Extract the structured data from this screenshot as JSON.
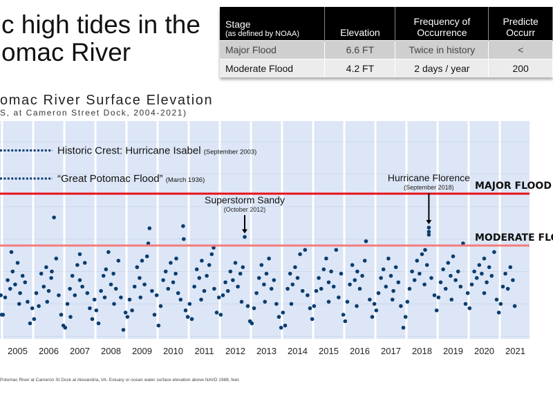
{
  "slide": {
    "title_line1": "c high tides in the",
    "title_line2": "omac River"
  },
  "table": {
    "headers": [
      {
        "main": "Stage",
        "sub": "(as defined by NOAA)"
      },
      {
        "main": "Elevation"
      },
      {
        "main": "Frequency of Occurrence"
      },
      {
        "main": "Predicte Occurr"
      }
    ],
    "rows": [
      [
        "Major Flood",
        "6.6 FT",
        "Twice in history",
        "<"
      ],
      [
        "Moderate Flood",
        "4.2 FT",
        "2 days / year",
        "200"
      ]
    ]
  },
  "footnote": "Potomac River at Cameron St Dock at Alexandria, VA. Estuary or ocean water surface elevation above NAVD 1988, feet.",
  "chart_data": {
    "type": "scatter",
    "title": "omac River Surface Elevation",
    "subtitle": "S, at Cameron Street Dock, 2004-2021)",
    "xlim": [
      2004.93,
      2021.7
    ],
    "ylim": [
      -0.12,
      9.96
    ],
    "x_ticks": [
      "2005",
      "2006",
      "2007",
      "2008",
      "2009",
      "2010",
      "2011",
      "2012",
      "2013",
      "2014",
      "2015",
      "2016",
      "2017",
      "2018",
      "2019",
      "2020",
      "2021"
    ],
    "grid": "vertical year bands",
    "colors": {
      "points": "#0b3d6e",
      "major": "#e8101a",
      "moderate": "#f47c7c",
      "background": "#dce6f6",
      "legend_lines": "#0b3d6e"
    },
    "thresholds": [
      {
        "label": "MAJOR FLOOD",
        "value": 6.6
      },
      {
        "label": "MODERATE FLOOD",
        "value": 4.2
      }
    ],
    "reference_lines": [
      {
        "label": "Historic Crest: Hurricane Isabel",
        "note": "(September 2003)",
        "value": 8.6
      },
      {
        "label": "“Great Potomac Flood”",
        "note": "(March 1936)",
        "value": 7.3
      }
    ],
    "annotations": [
      {
        "label": "Superstorm Sandy",
        "note": "(October 2012)",
        "x": 2012.8,
        "y": 4.6
      },
      {
        "label": "Hurricane Florence",
        "note": "(September 2018)",
        "x": 2018.72,
        "y": 5.03
      }
    ],
    "points": [
      [
        2004.96,
        1.9
      ],
      [
        2004.99,
        1.0
      ],
      [
        2005.03,
        1.0
      ],
      [
        2005.1,
        1.8
      ],
      [
        2005.18,
        2.6
      ],
      [
        2005.26,
        2.2
      ],
      [
        2005.34,
        3.0
      ],
      [
        2005.42,
        2.4
      ],
      [
        2005.5,
        3.4
      ],
      [
        2005.58,
        2.0
      ],
      [
        2005.66,
        2.8
      ],
      [
        2005.74,
        2.5
      ],
      [
        2005.82,
        1.6
      ],
      [
        2005.9,
        0.6
      ],
      [
        2005.97,
        1.3
      ],
      [
        2005.3,
        3.9
      ],
      [
        2005.55,
        1.5
      ],
      [
        2006.03,
        0.8
      ],
      [
        2006.1,
        2.0
      ],
      [
        2006.18,
        1.4
      ],
      [
        2006.26,
        2.9
      ],
      [
        2006.34,
        2.3
      ],
      [
        2006.42,
        3.2
      ],
      [
        2006.5,
        2.1
      ],
      [
        2006.58,
        2.7
      ],
      [
        2006.67,
        5.5
      ],
      [
        2006.74,
        3.6
      ],
      [
        2006.82,
        1.9
      ],
      [
        2006.9,
        1.0
      ],
      [
        2006.97,
        0.5
      ],
      [
        2006.6,
        3.0
      ],
      [
        2006.45,
        1.6
      ],
      [
        2007.03,
        0.4
      ],
      [
        2007.1,
        1.5
      ],
      [
        2007.18,
        2.2
      ],
      [
        2007.26,
        2.8
      ],
      [
        2007.34,
        1.9
      ],
      [
        2007.42,
        3.3
      ],
      [
        2007.5,
        2.6
      ],
      [
        2007.58,
        2.3
      ],
      [
        2007.66,
        3.4
      ],
      [
        2007.74,
        2.0
      ],
      [
        2007.82,
        1.3
      ],
      [
        2007.9,
        0.8
      ],
      [
        2007.97,
        1.7
      ],
      [
        2007.5,
        3.8
      ],
      [
        2007.2,
        0.9
      ],
      [
        2008.03,
        1.2
      ],
      [
        2008.1,
        0.6
      ],
      [
        2008.18,
        2.1
      ],
      [
        2008.26,
        2.8
      ],
      [
        2008.34,
        3.1
      ],
      [
        2008.42,
        3.9
      ],
      [
        2008.5,
        2.4
      ],
      [
        2008.58,
        2.9
      ],
      [
        2008.66,
        2.2
      ],
      [
        2008.74,
        3.5
      ],
      [
        2008.82,
        1.8
      ],
      [
        2008.9,
        0.3
      ],
      [
        2008.97,
        1.1
      ],
      [
        2008.6,
        1.5
      ],
      [
        2008.3,
        1.8
      ],
      [
        2009.03,
        0.9
      ],
      [
        2009.1,
        1.7
      ],
      [
        2009.18,
        1.2
      ],
      [
        2009.26,
        2.3
      ],
      [
        2009.34,
        3.2
      ],
      [
        2009.42,
        2.7
      ],
      [
        2009.5,
        3.5
      ],
      [
        2009.58,
        2.4
      ],
      [
        2009.66,
        3.7
      ],
      [
        2009.74,
        5.0
      ],
      [
        2009.82,
        2.1
      ],
      [
        2009.9,
        1.0
      ],
      [
        2009.97,
        1.9
      ],
      [
        2009.7,
        4.3
      ],
      [
        2009.45,
        1.8
      ],
      [
        2010.03,
        0.5
      ],
      [
        2010.1,
        1.4
      ],
      [
        2010.18,
        2.6
      ],
      [
        2010.26,
        3.0
      ],
      [
        2010.34,
        2.2
      ],
      [
        2010.42,
        3.4
      ],
      [
        2010.5,
        2.5
      ],
      [
        2010.58,
        2.9
      ],
      [
        2010.66,
        2.0
      ],
      [
        2010.74,
        1.7
      ],
      [
        2010.82,
        5.1
      ],
      [
        2010.9,
        1.2
      ],
      [
        2010.97,
        0.9
      ],
      [
        2010.84,
        4.5
      ],
      [
        2010.6,
        3.6
      ],
      [
        2011.03,
        1.5
      ],
      [
        2011.1,
        0.8
      ],
      [
        2011.18,
        2.3
      ],
      [
        2011.26,
        3.1
      ],
      [
        2011.34,
        2.7
      ],
      [
        2011.42,
        3.5
      ],
      [
        2011.5,
        2.1
      ],
      [
        2011.58,
        2.8
      ],
      [
        2011.66,
        3.3
      ],
      [
        2011.74,
        3.8
      ],
      [
        2011.82,
        2.2
      ],
      [
        2011.9,
        1.1
      ],
      [
        2011.97,
        1.8
      ],
      [
        2011.8,
        4.1
      ],
      [
        2011.4,
        1.7
      ],
      [
        2012.03,
        1.0
      ],
      [
        2012.1,
        1.9
      ],
      [
        2012.18,
        2.5
      ],
      [
        2012.26,
        2.1
      ],
      [
        2012.34,
        3.0
      ],
      [
        2012.42,
        2.6
      ],
      [
        2012.5,
        3.4
      ],
      [
        2012.58,
        2.3
      ],
      [
        2012.66,
        2.9
      ],
      [
        2012.74,
        3.2
      ],
      [
        2012.8,
        4.6
      ],
      [
        2012.9,
        1.4
      ],
      [
        2012.97,
        0.7
      ],
      [
        2012.7,
        1.6
      ],
      [
        2013.03,
        0.6
      ],
      [
        2013.1,
        1.3
      ],
      [
        2013.18,
        2.0
      ],
      [
        2013.26,
        2.7
      ],
      [
        2013.34,
        3.3
      ],
      [
        2013.42,
        2.4
      ],
      [
        2013.5,
        2.9
      ],
      [
        2013.58,
        3.6
      ],
      [
        2013.66,
        2.2
      ],
      [
        2013.74,
        2.6
      ],
      [
        2013.82,
        1.5
      ],
      [
        2013.9,
        0.9
      ],
      [
        2013.97,
        0.4
      ],
      [
        2013.45,
        1.6
      ],
      [
        2014.03,
        1.1
      ],
      [
        2014.1,
        0.5
      ],
      [
        2014.18,
        2.2
      ],
      [
        2014.26,
        2.9
      ],
      [
        2014.34,
        2.4
      ],
      [
        2014.42,
        3.2
      ],
      [
        2014.5,
        2.7
      ],
      [
        2014.58,
        3.8
      ],
      [
        2014.66,
        2.1
      ],
      [
        2014.74,
        4.0
      ],
      [
        2014.82,
        1.9
      ],
      [
        2014.9,
        1.3
      ],
      [
        2014.97,
        0.8
      ],
      [
        2014.3,
        1.5
      ],
      [
        2015.03,
        1.4
      ],
      [
        2015.1,
        2.1
      ],
      [
        2015.18,
        2.7
      ],
      [
        2015.26,
        2.2
      ],
      [
        2015.34,
        3.1
      ],
      [
        2015.42,
        3.6
      ],
      [
        2015.5,
        2.5
      ],
      [
        2015.58,
        3.0
      ],
      [
        2015.66,
        2.3
      ],
      [
        2015.74,
        4.0
      ],
      [
        2015.82,
        1.8
      ],
      [
        2015.9,
        2.9
      ],
      [
        2015.97,
        1.0
      ],
      [
        2015.5,
        1.6
      ],
      [
        2016.03,
        0.7
      ],
      [
        2016.1,
        1.6
      ],
      [
        2016.18,
        2.4
      ],
      [
        2016.26,
        3.3
      ],
      [
        2016.34,
        2.6
      ],
      [
        2016.42,
        3.0
      ],
      [
        2016.5,
        2.2
      ],
      [
        2016.58,
        2.8
      ],
      [
        2016.66,
        3.5
      ],
      [
        2016.7,
        4.4
      ],
      [
        2016.82,
        1.7
      ],
      [
        2016.9,
        0.9
      ],
      [
        2016.97,
        1.5
      ],
      [
        2016.4,
        1.4
      ],
      [
        2017.03,
        1.2
      ],
      [
        2017.1,
        2.0
      ],
      [
        2017.18,
        2.7
      ],
      [
        2017.26,
        3.1
      ],
      [
        2017.34,
        2.3
      ],
      [
        2017.42,
        3.6
      ],
      [
        2017.5,
        2.8
      ],
      [
        2017.58,
        2.1
      ],
      [
        2017.66,
        3.2
      ],
      [
        2017.74,
        2.5
      ],
      [
        2017.82,
        1.4
      ],
      [
        2017.9,
        0.4
      ],
      [
        2017.97,
        0.9
      ],
      [
        2017.55,
        1.7
      ],
      [
        2018.03,
        1.6
      ],
      [
        2018.1,
        2.2
      ],
      [
        2018.18,
        3.0
      ],
      [
        2018.26,
        2.6
      ],
      [
        2018.34,
        3.5
      ],
      [
        2018.42,
        2.9
      ],
      [
        2018.5,
        3.8
      ],
      [
        2018.58,
        2.4
      ],
      [
        2018.66,
        3.3
      ],
      [
        2018.72,
        5.03
      ],
      [
        2018.72,
        4.84
      ],
      [
        2018.72,
        4.7
      ],
      [
        2018.8,
        2.7
      ],
      [
        2018.9,
        1.9
      ],
      [
        2018.97,
        1.2
      ],
      [
        2018.6,
        4.0
      ],
      [
        2019.03,
        1.8
      ],
      [
        2019.1,
        2.5
      ],
      [
        2019.18,
        3.1
      ],
      [
        2019.26,
        2.2
      ],
      [
        2019.34,
        3.4
      ],
      [
        2019.42,
        2.8
      ],
      [
        2019.5,
        3.7
      ],
      [
        2019.58,
        2.6
      ],
      [
        2019.66,
        3.0
      ],
      [
        2019.74,
        2.3
      ],
      [
        2019.82,
        4.3
      ],
      [
        2019.9,
        1.5
      ],
      [
        2019.97,
        2.0
      ],
      [
        2019.45,
        1.7
      ],
      [
        2020.03,
        1.3
      ],
      [
        2020.1,
        2.4
      ],
      [
        2020.18,
        3.0
      ],
      [
        2020.26,
        2.7
      ],
      [
        2020.34,
        3.3
      ],
      [
        2020.42,
        2.9
      ],
      [
        2020.5,
        3.6
      ],
      [
        2020.58,
        2.5
      ],
      [
        2020.66,
        3.2
      ],
      [
        2020.74,
        2.8
      ],
      [
        2020.82,
        3.9
      ],
      [
        2020.9,
        1.7
      ],
      [
        2020.97,
        1.1
      ],
      [
        2020.5,
        2.0
      ],
      [
        2021.03,
        1.5
      ],
      [
        2021.1,
        2.3
      ],
      [
        2021.18,
        2.9
      ],
      [
        2021.26,
        2.2
      ],
      [
        2021.34,
        3.2
      ],
      [
        2021.42,
        2.6
      ],
      [
        2021.48,
        1.4
      ]
    ]
  }
}
